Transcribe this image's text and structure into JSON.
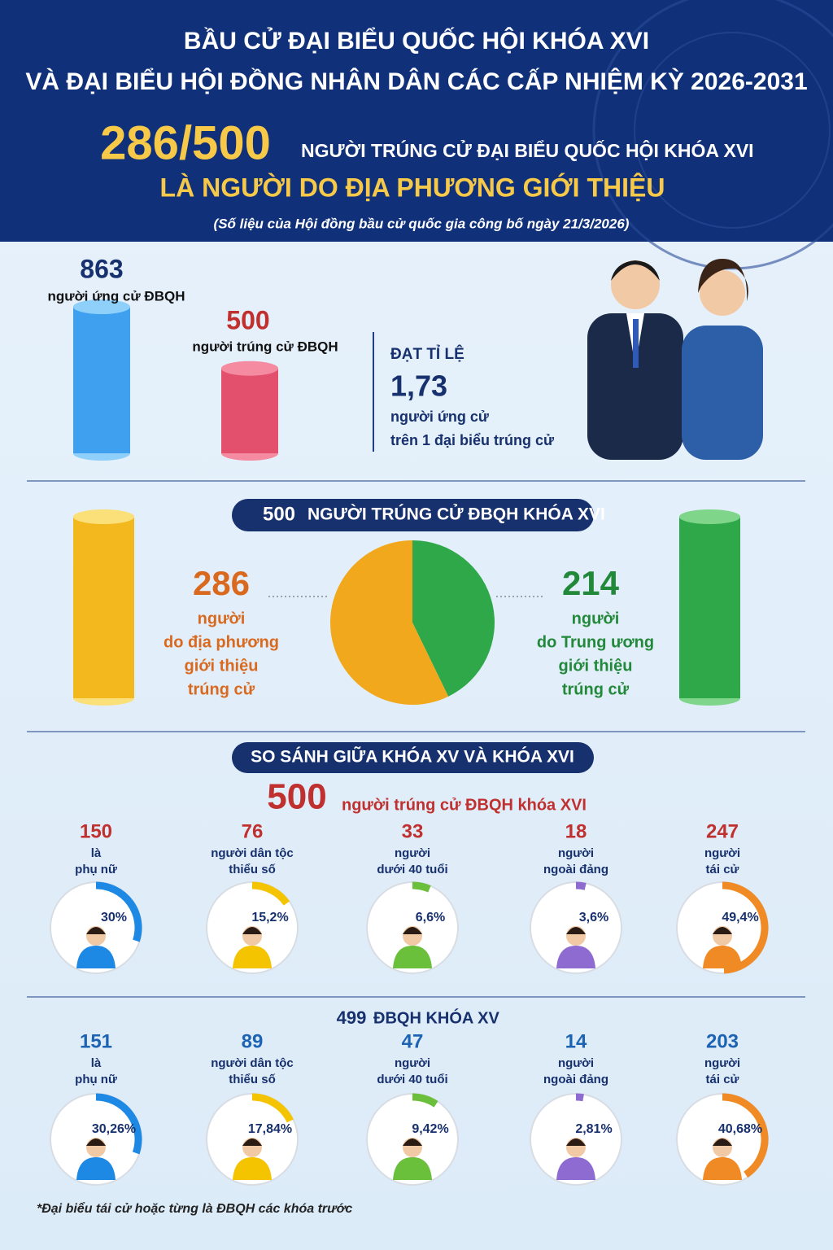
{
  "header": {
    "title_line1": "BẦU CỬ ĐẠI BIỂU QUỐC HỘI KHÓA XVI",
    "title_line2": "VÀ ĐẠI BIỂU HỘI ĐỒNG NHÂN DÂN CÁC CẤP NHIỆM KỲ 2026-2031",
    "headline_number": "286/500",
    "headline_text": "NGƯỜI TRÚNG CỬ ĐẠI BIỂU QUỐC HỘI KHÓA XVI",
    "headline_line2": "LÀ NGƯỜI DO ĐỊA PHƯƠNG GIỚI THIỆU",
    "source": "(Số liệu của Hội đồng bầu cử quốc gia công bố ngày 21/3/2026)"
  },
  "overview": {
    "candidates": {
      "value": 863,
      "label": "người ứng cử ĐBQH"
    },
    "elected": {
      "value": 500,
      "label": "người trúng cử ĐBQH"
    },
    "ratio_title": "ĐẠT TỈ LỆ",
    "ratio": "1,73",
    "ratio_lines": [
      "người ứng cử",
      "trên 1 đại biểu trúng cử"
    ]
  },
  "split": {
    "banner_number": 500,
    "banner_text": "NGƯỜI TRÚNG CỬ ĐBQH KHÓA XVI",
    "local": {
      "value": 286,
      "lines": [
        "người",
        "do địa phương",
        "giới thiệu",
        "trúng cử"
      ],
      "color": "#f2a81d"
    },
    "central": {
      "value": 214,
      "lines": [
        "người",
        "do Trung ương",
        "giới thiệu",
        "trúng cử"
      ],
      "color": "#2fa84a"
    }
  },
  "comparison": {
    "banner": "SO SÁNH GIỮA KHÓA XV VÀ KHÓA XVI",
    "xvi": {
      "total": 500,
      "total_text": "người trúng cử ĐBQH khóa XVI",
      "items": [
        {
          "value": 150,
          "lines": [
            "là",
            "phụ nữ"
          ],
          "percent": 30,
          "percent_label": "30%",
          "color": "#1e88e5"
        },
        {
          "value": 76,
          "lines": [
            "người dân tộc",
            "thiểu số"
          ],
          "percent": 15.2,
          "percent_label": "15,2%",
          "color": "#f5c400"
        },
        {
          "value": 33,
          "lines": [
            "người",
            "dưới 40 tuổi"
          ],
          "percent": 6.6,
          "percent_label": "6,6%",
          "color": "#6abf3b"
        },
        {
          "value": 18,
          "lines": [
            "người",
            "ngoài đảng"
          ],
          "percent": 3.6,
          "percent_label": "3,6%",
          "color": "#8e6bd0"
        },
        {
          "value": 247,
          "lines": [
            "người",
            "tái cử"
          ],
          "percent": 49.4,
          "percent_label": "49,4%",
          "color": "#f08a24"
        }
      ]
    },
    "xv": {
      "total": 499,
      "total_text": "ĐBQH KHÓA XV",
      "items": [
        {
          "value": 151,
          "lines": [
            "là",
            "phụ nữ"
          ],
          "percent": 30.26,
          "percent_label": "30,26%",
          "color": "#1e88e5"
        },
        {
          "value": 89,
          "lines": [
            "người dân tộc",
            "thiểu số"
          ],
          "percent": 17.84,
          "percent_label": "17,84%",
          "color": "#f5c400"
        },
        {
          "value": 47,
          "lines": [
            "người",
            "dưới 40 tuổi"
          ],
          "percent": 9.42,
          "percent_label": "9,42%",
          "color": "#6abf3b"
        },
        {
          "value": 14,
          "lines": [
            "người",
            "ngoài đảng"
          ],
          "percent": 2.81,
          "percent_label": "2,81%",
          "color": "#8e6bd0"
        },
        {
          "value": 203,
          "lines": [
            "người",
            "tái cử"
          ],
          "percent": 40.68,
          "percent_label": "40,68%",
          "color": "#f08a24"
        }
      ]
    },
    "footnote": "*Đại biểu tái cử hoặc từng là ĐBQH các khóa trước"
  }
}
